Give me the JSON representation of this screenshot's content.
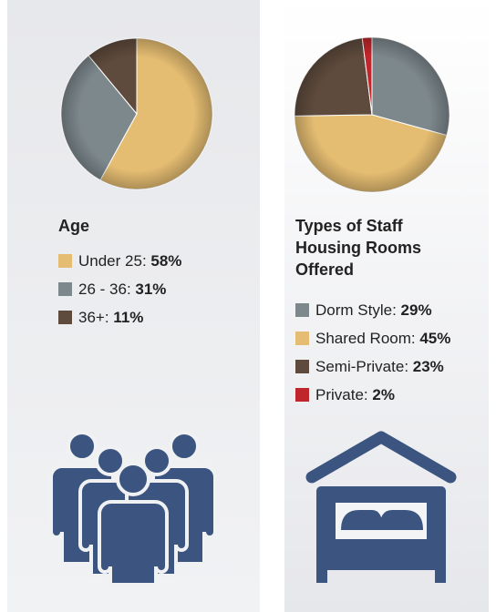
{
  "chart_data": [
    {
      "type": "pie",
      "title": "Age",
      "categories": [
        "Under 25",
        "26 - 36",
        "36+"
      ],
      "values": [
        58,
        31,
        11
      ],
      "value_labels": [
        "58%",
        "31%",
        "11%"
      ],
      "colors": [
        "#e5bd72",
        "#7d888d",
        "#5f4b3d"
      ]
    },
    {
      "type": "pie",
      "title": "Types of Staff Housing Rooms Offered",
      "categories": [
        "Dorm Style",
        "Shared Room",
        "Semi-Private",
        "Private"
      ],
      "values": [
        29,
        45,
        23,
        2
      ],
      "value_labels": [
        "29%",
        "45%",
        "23%",
        "2%"
      ],
      "colors": [
        "#7d888d",
        "#e5bd72",
        "#5f4b3d",
        "#c0272d"
      ]
    }
  ]
}
